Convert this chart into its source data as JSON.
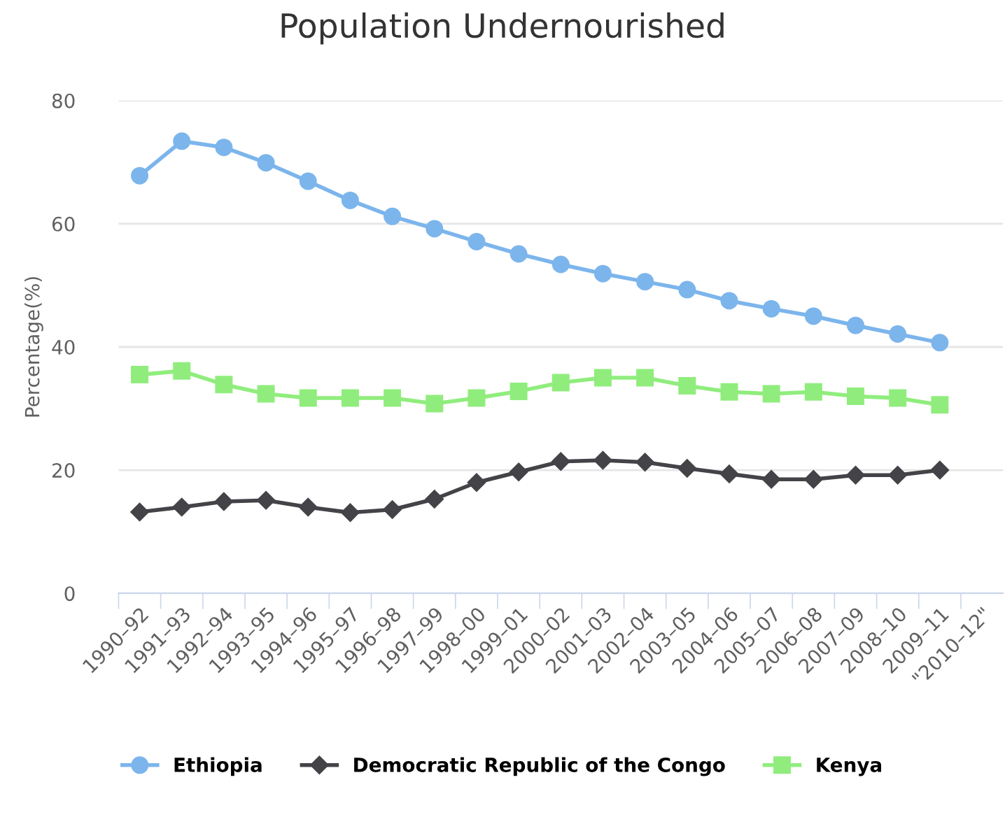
{
  "chart_data": {
    "type": "line",
    "title": "Population Undernourished",
    "ylabel": "Percentage(%)",
    "categories": [
      "1990–92",
      "1991–93",
      "1992–94",
      "1993–95",
      "1994–96",
      "1995–97",
      "1996–98",
      "1997–99",
      "1998–00",
      "1999–01",
      "2000–02",
      "2001–03",
      "2002–04",
      "2003–05",
      "2004–06",
      "2005–07",
      "2006–08",
      "2007–09",
      "2008–10",
      "2009–11",
      "\"2010–12\""
    ],
    "series": [
      {
        "name": "Ethiopia",
        "color": "#7cb5ec",
        "marker": "circle",
        "values": [
          67.8,
          73.4,
          72.4,
          69.9,
          66.9,
          63.8,
          61.2,
          59.2,
          57.1,
          55.1,
          53.4,
          51.9,
          50.6,
          49.3,
          47.5,
          46.2,
          45.0,
          43.5,
          42.1,
          40.7,
          null
        ]
      },
      {
        "name": "Democratic Republic of the Congo",
        "color": "#434348",
        "marker": "diamond",
        "values": [
          13.2,
          14.0,
          14.9,
          15.1,
          14.0,
          13.1,
          13.6,
          15.3,
          18.0,
          19.7,
          21.4,
          21.6,
          21.3,
          20.3,
          19.4,
          18.5,
          18.5,
          19.2,
          19.2,
          20.0,
          null
        ]
      },
      {
        "name": "Kenya",
        "color": "#90ed7d",
        "marker": "square",
        "values": [
          35.5,
          36.1,
          33.9,
          32.4,
          31.7,
          31.7,
          31.7,
          30.8,
          31.7,
          32.8,
          34.2,
          35.0,
          35.0,
          33.7,
          32.7,
          32.4,
          32.7,
          32.0,
          31.7,
          30.6,
          null
        ]
      }
    ],
    "ylim": [
      0,
      80
    ],
    "yticks": [
      0,
      20,
      40,
      60,
      80
    ],
    "grid": "y",
    "legend": "bottom",
    "line_style": "solid"
  }
}
